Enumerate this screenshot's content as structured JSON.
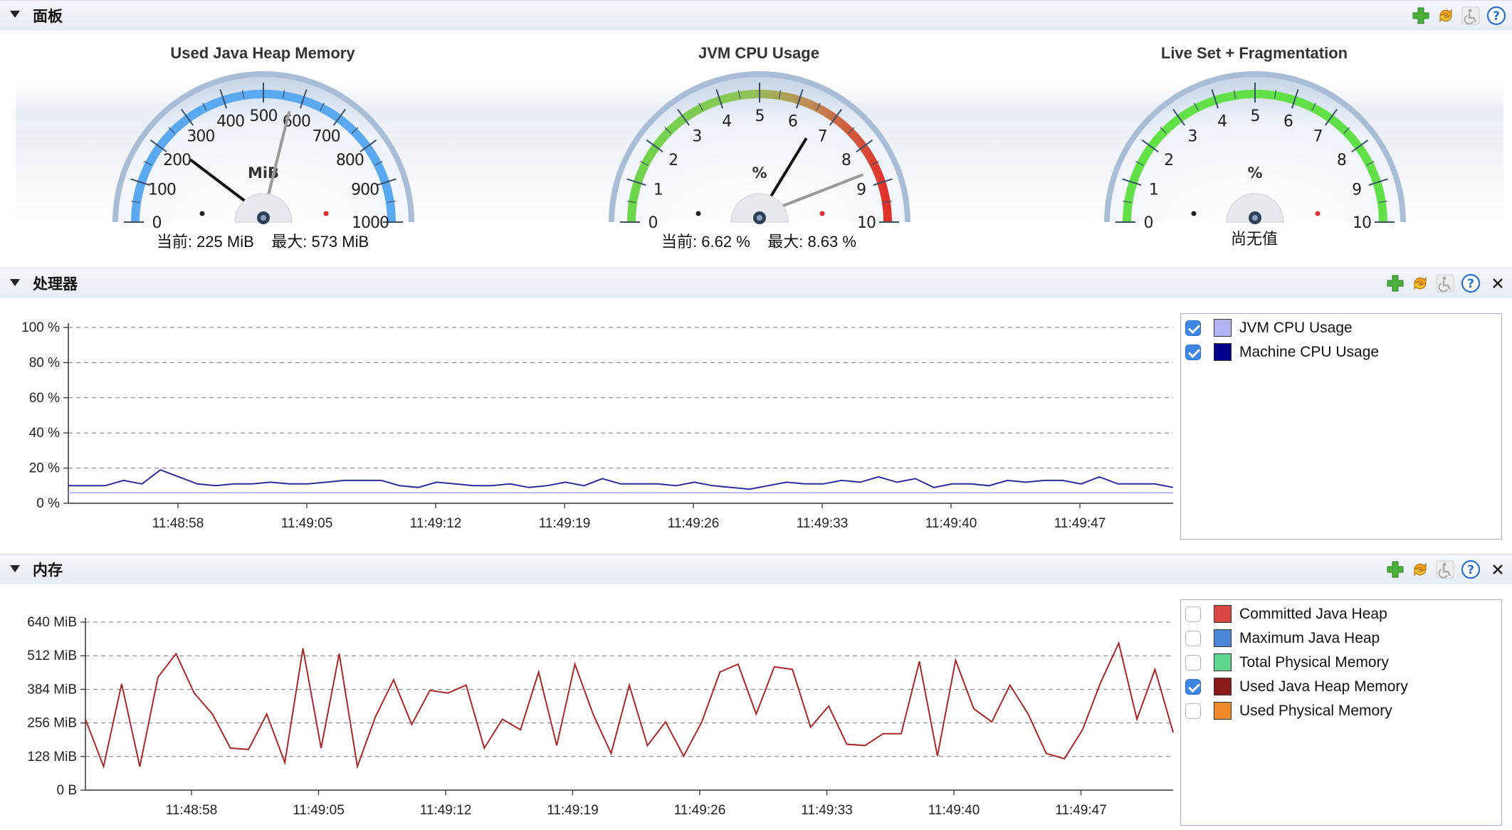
{
  "dashboard": {
    "title": "面板",
    "gauges": [
      {
        "title": "Used Java Heap Memory",
        "unit": "MiB",
        "max_scale": 1000,
        "ticks": [
          "0",
          "100",
          "200",
          "300",
          "400",
          "500",
          "600",
          "700",
          "800",
          "900",
          "1000"
        ],
        "value": 225,
        "max_value": 573,
        "readout": "当前: 225 MiB    最大: 573 MiB",
        "arc": "blue"
      },
      {
        "title": "JVM CPU Usage",
        "unit": "%",
        "max_scale": 10,
        "ticks": [
          "0",
          "1",
          "2",
          "3",
          "4",
          "5",
          "6",
          "7",
          "8",
          "9",
          "10"
        ],
        "value": 6.62,
        "max_value": 8.63,
        "readout": "当前: 6.62 %    最大: 8.63 %",
        "arc": "gradient"
      },
      {
        "title": "Live Set + Fragmentation",
        "unit": "%",
        "max_scale": 10,
        "ticks": [
          "0",
          "1",
          "2",
          "3",
          "4",
          "5",
          "6",
          "7",
          "8",
          "9",
          "10"
        ],
        "value": null,
        "max_value": null,
        "readout": "尚无值",
        "arc": "green"
      }
    ]
  },
  "processor": {
    "title": "处理器",
    "chart_data": {
      "type": "line",
      "y_ticks": [
        "100 %",
        "80 %",
        "60 %",
        "40 %",
        "20 %",
        "0 %"
      ],
      "ylim": [
        0,
        100
      ],
      "x_ticks": [
        "11:48:58",
        "11:49:05",
        "11:49:12",
        "11:49:19",
        "11:49:26",
        "11:49:33",
        "11:49:40",
        "11:49:47"
      ],
      "series": [
        {
          "name": "Machine CPU Usage",
          "color": "#2c2c9c",
          "values": [
            10,
            10,
            10,
            13,
            11,
            19,
            15,
            11,
            10,
            11,
            11,
            12,
            11,
            11,
            12,
            13,
            13,
            13,
            10,
            9,
            12,
            11,
            10,
            10,
            11,
            9,
            10,
            12,
            10,
            14,
            11,
            11,
            11,
            10,
            12,
            10,
            9,
            8,
            10,
            12,
            11,
            11,
            13,
            12,
            15,
            12,
            14,
            9,
            11,
            11,
            10,
            13,
            12,
            13,
            13,
            11,
            15,
            11,
            11,
            11,
            9
          ]
        },
        {
          "name": "JVM CPU Usage",
          "color": "#b4b4f5",
          "values": [
            6,
            6,
            6,
            6,
            6,
            6,
            6,
            6,
            6,
            6,
            6,
            6,
            6,
            6,
            6,
            6,
            6,
            6,
            6,
            6,
            6,
            6,
            6,
            6,
            6,
            6,
            6,
            6,
            6,
            6,
            6,
            6,
            6,
            6,
            6,
            6,
            6,
            6,
            6,
            6,
            6,
            6,
            6,
            6,
            6,
            6,
            6,
            6,
            6,
            6,
            6,
            6,
            6,
            6,
            6,
            6,
            6,
            6,
            6,
            6,
            6
          ]
        }
      ]
    },
    "legend": [
      {
        "label": "JVM CPU Usage",
        "color": "#b4b4f5",
        "checked": true
      },
      {
        "label": "Machine CPU Usage",
        "color": "#00008b",
        "checked": true
      }
    ]
  },
  "memory": {
    "title": "内存",
    "chart_data": {
      "type": "line",
      "y_ticks": [
        "640 MiB",
        "512 MiB",
        "384 MiB",
        "256 MiB",
        "128 MiB",
        "0 B"
      ],
      "ylim": [
        0,
        640
      ],
      "x_ticks": [
        "11:48:58",
        "11:49:05",
        "11:49:12",
        "11:49:19",
        "11:49:26",
        "11:49:33",
        "11:49:40",
        "11:49:47"
      ],
      "series": [
        {
          "name": "Used Java Heap Memory",
          "color": "#a82828",
          "values": [
            270,
            90,
            405,
            90,
            430,
            520,
            370,
            290,
            160,
            155,
            290,
            105,
            540,
            160,
            520,
            90,
            280,
            420,
            250,
            380,
            370,
            400,
            160,
            270,
            230,
            450,
            170,
            480,
            290,
            140,
            400,
            170,
            260,
            130,
            260,
            450,
            480,
            290,
            470,
            460,
            240,
            320,
            175,
            170,
            215,
            215,
            490,
            130,
            495,
            310,
            260,
            400,
            290,
            140,
            120,
            230,
            410,
            560,
            270,
            460,
            220
          ]
        }
      ]
    },
    "legend": [
      {
        "label": "Committed Java Heap",
        "color": "#d94545",
        "checked": false
      },
      {
        "label": "Maximum Java Heap",
        "color": "#4a86d8",
        "checked": false
      },
      {
        "label": "Total Physical Memory",
        "color": "#5ed68e",
        "checked": false
      },
      {
        "label": "Used Java Heap Memory",
        "color": "#8b1a1a",
        "checked": true
      },
      {
        "label": "Used Physical Memory",
        "color": "#ee8a2a",
        "checked": false
      }
    ]
  }
}
